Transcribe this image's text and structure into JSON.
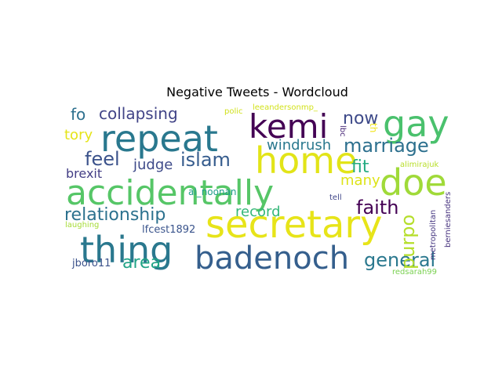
{
  "chart_data": {
    "type": "wordcloud",
    "title": "Negative Tweets - Wordcloud",
    "words": [
      {
        "text": "secretary",
        "color": "#e7e419"
      },
      {
        "text": "accidentally",
        "color": "#56c667"
      },
      {
        "text": "badenoch",
        "color": "#355f8d"
      },
      {
        "text": "home",
        "color": "#e2e418"
      },
      {
        "text": "repeat",
        "color": "#29788e"
      },
      {
        "text": "thing",
        "color": "#2a788e"
      },
      {
        "text": "doe",
        "color": "#a0da39"
      },
      {
        "text": "kemi",
        "color": "#440154"
      },
      {
        "text": "gay",
        "color": "#4ac16d"
      },
      {
        "text": "relationship",
        "color": "#2c718e"
      },
      {
        "text": "marriage",
        "color": "#2d708e"
      },
      {
        "text": "collapsing",
        "color": "#414487"
      },
      {
        "text": "islam",
        "color": "#365c8d"
      },
      {
        "text": "general",
        "color": "#2a788e"
      },
      {
        "text": "faith",
        "color": "#440154"
      },
      {
        "text": "now",
        "color": "#3e4a89"
      },
      {
        "text": "feel",
        "color": "#3b528b"
      },
      {
        "text": "purpo",
        "color": "#b5de2b"
      },
      {
        "text": "area",
        "color": "#20a386"
      },
      {
        "text": "fit",
        "color": "#25ab82"
      },
      {
        "text": "windrush",
        "color": "#2a788e"
      },
      {
        "text": "many",
        "color": "#dde318"
      },
      {
        "text": "record",
        "color": "#35b779"
      },
      {
        "text": "tory",
        "color": "#e5e419"
      },
      {
        "text": "brexit",
        "color": "#433e85"
      },
      {
        "text": "judge",
        "color": "#3e4a89"
      },
      {
        "text": "fo",
        "color": "#2d708e"
      },
      {
        "text": "lfcest1892",
        "color": "#3a548c"
      },
      {
        "text": "jboro11",
        "color": "#3b528b"
      },
      {
        "text": "al_noonan",
        "color": "#1e9c89"
      },
      {
        "text": "redsarah99",
        "color": "#7ad151"
      },
      {
        "text": "berniesanders",
        "color": "#46327e"
      },
      {
        "text": "metropolitan",
        "color": "#453781"
      },
      {
        "text": "alimirajuk",
        "color": "#b8de29"
      },
      {
        "text": "leeandersonmp_",
        "color": "#d2e21b"
      },
      {
        "text": "laughing",
        "color": "#a5db36"
      },
      {
        "text": "polic",
        "color": "#d0e11c"
      },
      {
        "text": "tell",
        "color": "#404688"
      },
      {
        "text": "lbc",
        "color": "#482878"
      },
      {
        "text": "th",
        "color": "#f1e51d"
      }
    ]
  }
}
